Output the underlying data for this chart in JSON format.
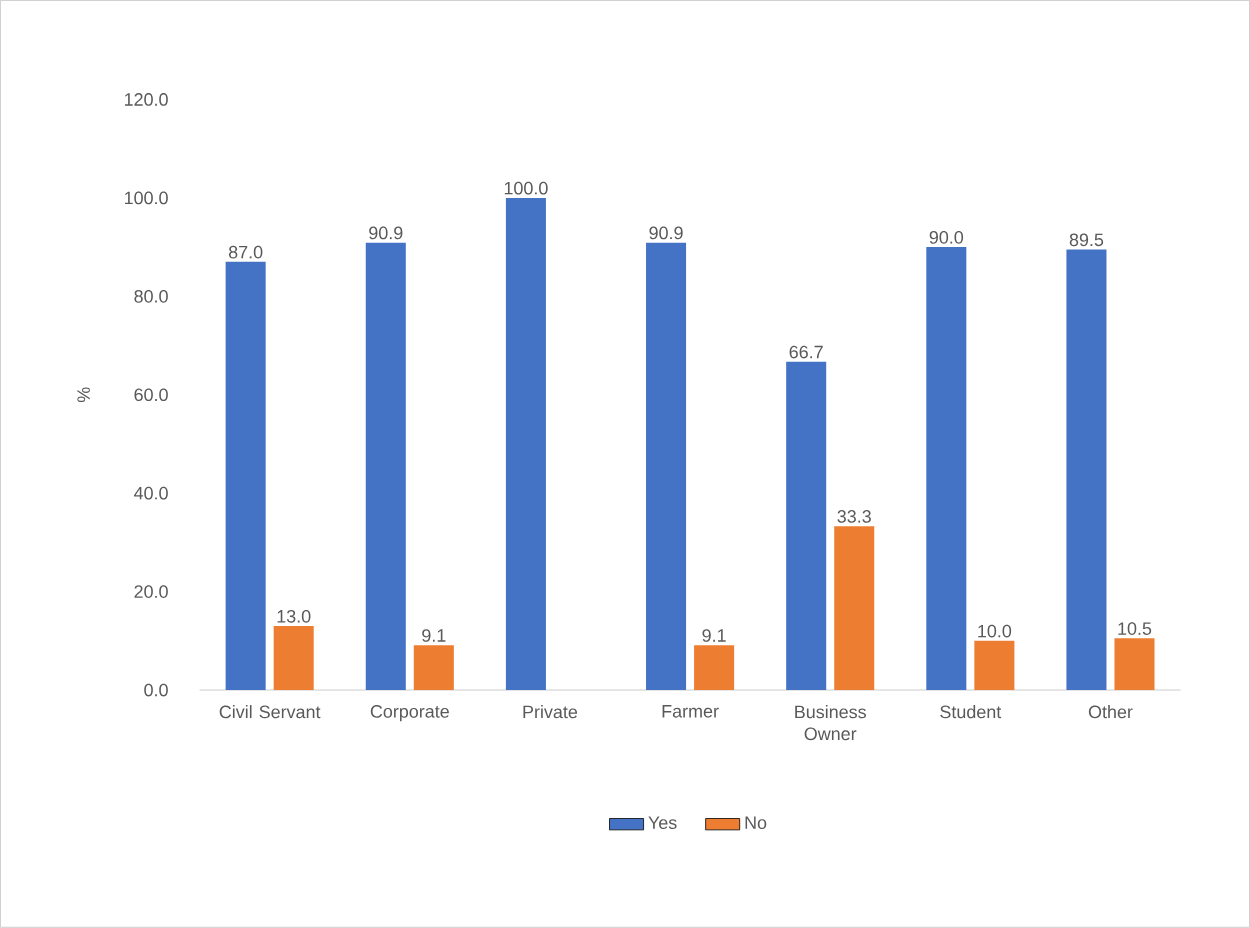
{
  "chart_data": {
    "type": "bar",
    "ylabel": "%",
    "categories": [
      "Civil Servant",
      "Corporate",
      "Private",
      "Farmer",
      "Business Owner",
      "Student",
      "Other"
    ],
    "series": [
      {
        "name": "Yes",
        "color": "#4472c4",
        "values": [
          87.0,
          90.9,
          100.0,
          90.9,
          66.7,
          90.0,
          89.5
        ],
        "value_labels": [
          "87.0",
          "90.9",
          "100.0",
          "90.9",
          "66.7",
          "90.0",
          "89.5"
        ]
      },
      {
        "name": "No",
        "color": "#ed7d31",
        "values": [
          13.0,
          9.1,
          0,
          9.1,
          33.3,
          10.0,
          10.5
        ],
        "value_labels": [
          "13.0",
          "9.1",
          null,
          "9.1",
          "33.3",
          "10.0",
          "10.5"
        ]
      }
    ],
    "ylim": [
      0,
      120
    ],
    "yticks": [
      {
        "value": 0,
        "label": "0.0"
      },
      {
        "value": 20,
        "label": "20.0"
      },
      {
        "value": 40,
        "label": "40.0"
      },
      {
        "value": 60,
        "label": "60.0"
      },
      {
        "value": 80,
        "label": "80.0"
      },
      {
        "value": 100,
        "label": "100.0"
      },
      {
        "value": 120,
        "label": "120.0"
      }
    ],
    "legend": "bottom"
  }
}
